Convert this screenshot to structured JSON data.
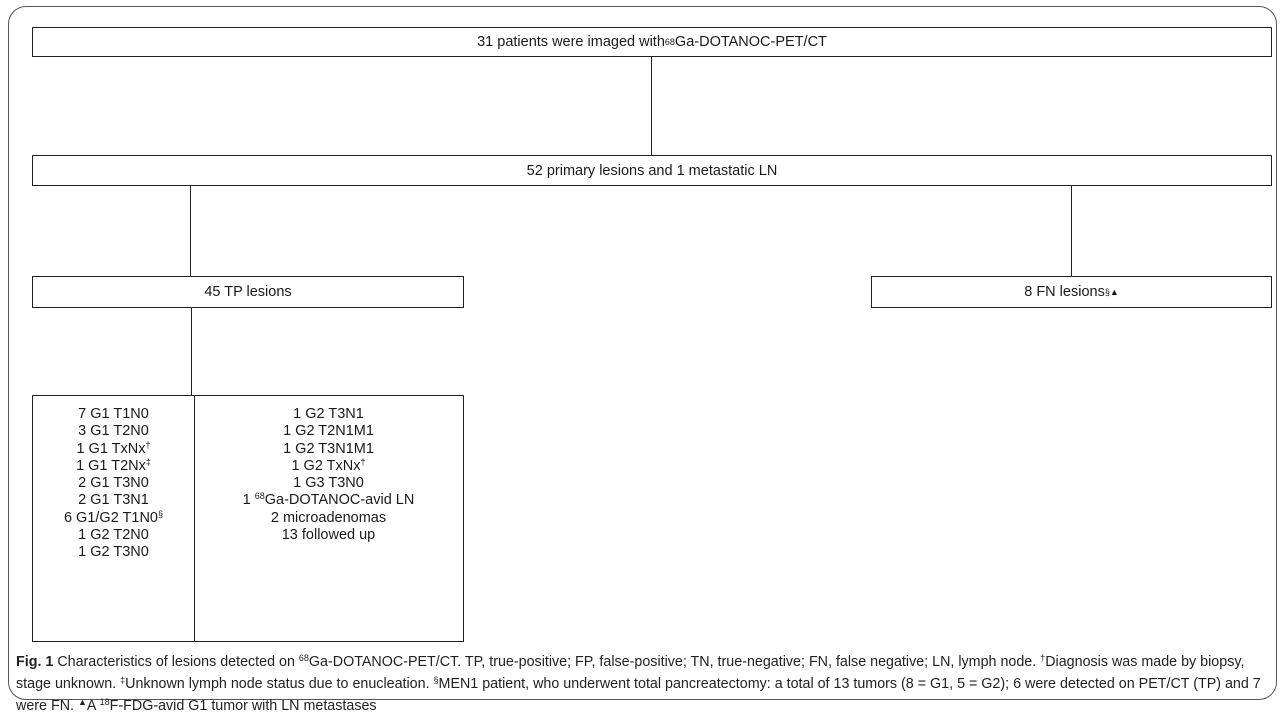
{
  "diagram": {
    "top_box": {
      "pre": "31 patients were imaged with ",
      "sup": "68",
      "post": "Ga-DOTANOC-PET/CT"
    },
    "second_box": {
      "text": "52 primary lesions and 1 metastatic LN"
    },
    "tp_box": {
      "text": "45 TP lesions"
    },
    "fn_box": {
      "text": "8 FN lesions",
      "sup": "§▲"
    },
    "left_column": [
      {
        "text": "7 G1 T1N0",
        "sup": ""
      },
      {
        "text": "3 G1 T2N0",
        "sup": ""
      },
      {
        "text": "1 G1 TxNx",
        "sup": "†"
      },
      {
        "text": "1 G1 T2Nx",
        "sup": "‡"
      },
      {
        "text": "2 G1 T3N0",
        "sup": ""
      },
      {
        "text": "2 G1 T3N1",
        "sup": ""
      },
      {
        "text": "6 G1/G2 T1N0",
        "sup": "§"
      },
      {
        "text": "1 G2 T2N0",
        "sup": ""
      },
      {
        "text": "1 G2 T3N0",
        "sup": ""
      }
    ],
    "right_column": [
      {
        "pre": "1 G2 T3N1",
        "sup": "",
        "post": ""
      },
      {
        "pre": "1 G2 T2N1M1",
        "sup": "",
        "post": ""
      },
      {
        "pre": "1 G2 T3N1M1",
        "sup": "",
        "post": ""
      },
      {
        "pre": "1 G2 TxNx",
        "sup": "†",
        "post": ""
      },
      {
        "pre": "1 G3 T3N0",
        "sup": "",
        "post": ""
      },
      {
        "pre": "1 ",
        "sup": "68",
        "post": "Ga-DOTANOC-avid LN"
      },
      {
        "pre": "2 microadenomas",
        "sup": "",
        "post": ""
      },
      {
        "pre": "13 followed up",
        "sup": "",
        "post": ""
      }
    ]
  },
  "caption": {
    "fig_label": "Fig. 1",
    "s1": " Characteristics of lesions detected on ",
    "sup68": "68",
    "s2": "Ga-DOTANOC-PET/CT. TP, true-positive; FP, false-positive; TN, true-negative; FN, false negative; LN, lymph node. ",
    "dagger": "†",
    "s3": "Diagnosis was made by biopsy, stage unknown. ",
    "ddagger": "‡",
    "s4": "Unknown lymph node status due to enucleation. ",
    "section": "§",
    "s5": "MEN1 patient, who underwent total pancreatectomy: a total of 13 tumors (8 = G1, 5 = G2); 6 were detected on PET/CT (TP) and 7 were FN. ",
    "triangle": "▲",
    "s6": "A ",
    "sup18": "18",
    "s7": "F-FDG-avid G1 tumor with LN metastases"
  }
}
